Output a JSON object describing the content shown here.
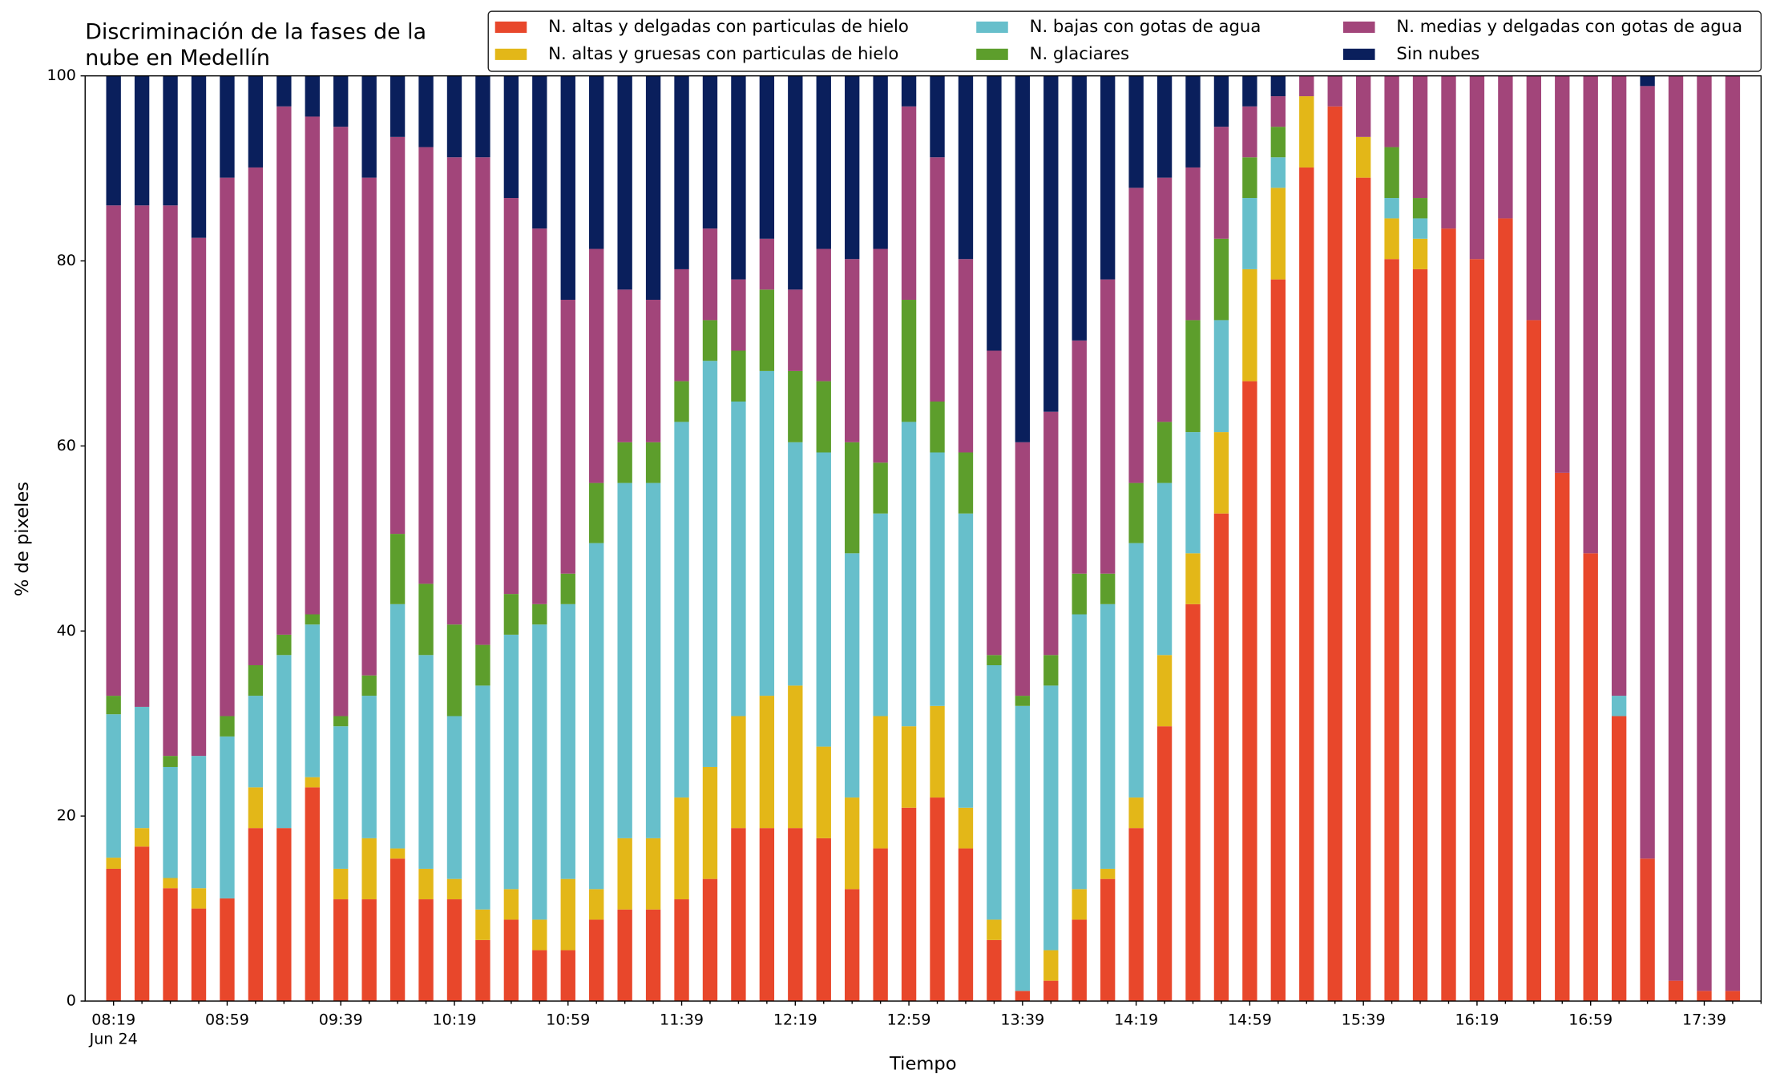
{
  "chart_data": {
    "type": "stacked-bar",
    "title": [
      "Discriminación de la fases de la",
      "nube en Medellín"
    ],
    "x_label": "Tiempo",
    "y_label": "% de pixeles",
    "categories": [
      "08:19",
      null,
      null,
      null,
      "08:59",
      null,
      null,
      null,
      "09:39",
      null,
      null,
      null,
      "10:19",
      null,
      null,
      null,
      "10:59",
      null,
      null,
      null,
      "11:39",
      null,
      null,
      null,
      "12:19",
      null,
      null,
      null,
      "12:59",
      null,
      null,
      null,
      "13:39",
      null,
      null,
      null,
      "14:19",
      null,
      null,
      null,
      "14:59",
      null,
      null,
      null,
      "15:39",
      null,
      null,
      null,
      "16:19",
      null,
      null,
      null,
      "16:59",
      null,
      null,
      null,
      "17:39",
      null
    ],
    "x_sublabel": "Jun 24",
    "ylim": [
      0,
      100
    ],
    "yticks": [
      0,
      20,
      40,
      60,
      80,
      100
    ],
    "grid": false,
    "legend_columns": 3,
    "series": [
      {
        "name": "N. altas y delgadas con particulas de hielo",
        "color": "#e8472b",
        "values": [
          14.3,
          16.7,
          12.2,
          10,
          11.1,
          18.7,
          18.7,
          23.1,
          11,
          11,
          15.4,
          11,
          11,
          6.6,
          8.8,
          5.5,
          5.5,
          8.8,
          9.9,
          9.9,
          11,
          13.2,
          18.7,
          18.7,
          18.7,
          17.6,
          12.1,
          16.5,
          20.9,
          22,
          16.5,
          6.6,
          1.1,
          2.2,
          8.8,
          13.2,
          18.7,
          29.7,
          42.9,
          52.7,
          67,
          78,
          90.1,
          96.7,
          89,
          80.2,
          79.1,
          83.5,
          80.2,
          84.6,
          73.6,
          57.1,
          48.4,
          30.8,
          15.4,
          2.2,
          1.1,
          1.1
        ]
      },
      {
        "name": "N. altas y gruesas con particulas de hielo",
        "color": "#e3b718",
        "values": [
          1.2,
          2,
          1.1,
          2.2,
          0,
          4.4,
          0,
          1.1,
          3.3,
          6.6,
          1.1,
          3.3,
          2.2,
          3.3,
          3.3,
          3.3,
          7.7,
          3.3,
          7.7,
          7.7,
          11,
          12.1,
          12.1,
          14.3,
          15.4,
          9.9,
          9.9,
          14.3,
          8.8,
          9.9,
          4.4,
          2.2,
          0,
          3.3,
          3.3,
          1.1,
          3.3,
          7.7,
          5.5,
          8.8,
          12.1,
          9.9,
          7.7,
          0,
          4.4,
          4.4,
          3.3,
          0,
          0,
          0,
          0,
          0,
          0,
          0,
          0,
          0,
          0,
          0
        ]
      },
      {
        "name": "N. bajas con gotas de agua",
        "color": "#67bfcb",
        "values": [
          15.5,
          13.1,
          12,
          14.3,
          17.5,
          9.9,
          18.7,
          16.5,
          15.4,
          15.4,
          26.4,
          23.1,
          17.6,
          24.2,
          27.5,
          31.9,
          29.7,
          37.4,
          38.4,
          38.4,
          40.6,
          43.9,
          34,
          35.1,
          26.3,
          31.8,
          26.4,
          21.9,
          32.9,
          27.4,
          31.8,
          27.5,
          30.8,
          28.6,
          29.7,
          28.6,
          27.5,
          18.6,
          13.1,
          12.1,
          7.7,
          3.3,
          0,
          0,
          0,
          2.2,
          2.2,
          0,
          0,
          0,
          0,
          0,
          0,
          2.2,
          0,
          0,
          0,
          0
        ]
      },
      {
        "name": "N. glaciares",
        "color": "#5d9e2c",
        "values": [
          2,
          0,
          1.2,
          0,
          2.2,
          3.3,
          2.2,
          1.1,
          1.1,
          2.2,
          7.6,
          7.7,
          9.9,
          4.4,
          4.4,
          2.2,
          3.3,
          6.5,
          4.4,
          4.4,
          4.4,
          4.4,
          5.5,
          8.8,
          7.7,
          7.7,
          12,
          5.5,
          13.2,
          5.5,
          6.6,
          1.1,
          1.1,
          3.3,
          4.4,
          3.3,
          6.5,
          6.6,
          12.1,
          8.8,
          4.4,
          3.3,
          0,
          0,
          0,
          5.5,
          2.2,
          0,
          0,
          0,
          0,
          0,
          0,
          0,
          0,
          0,
          0,
          0
        ]
      },
      {
        "name": "N. medias y delgadas con gotas de agua",
        "color": "#a2457a",
        "values": [
          53,
          54.2,
          59.5,
          56,
          58.2,
          53.8,
          57.1,
          53.8,
          63.7,
          53.8,
          42.9,
          47.2,
          50.5,
          52.7,
          42.8,
          40.6,
          29.6,
          25.3,
          16.5,
          15.4,
          12.1,
          9.9,
          7.7,
          5.5,
          8.8,
          14.3,
          19.8,
          23.1,
          20.9,
          26.4,
          20.9,
          32.9,
          27.4,
          26.3,
          25.2,
          31.8,
          31.9,
          26.4,
          16.5,
          12.1,
          5.5,
          3.3,
          2.2,
          3.3,
          6.6,
          7.7,
          13.2,
          16.5,
          19.8,
          15.4,
          26.4,
          42.9,
          51.6,
          67,
          83.5,
          97.8,
          98.9,
          98.9
        ]
      },
      {
        "name": "Sin nubes",
        "color": "#0a1f5c",
        "values": [
          14,
          14,
          14,
          17.5,
          11,
          9.9,
          3.3,
          4.4,
          5.5,
          11,
          6.6,
          7.7,
          8.8,
          8.8,
          13.2,
          16.5,
          24.2,
          18.7,
          23.1,
          24.2,
          20.9,
          16.5,
          22,
          17.6,
          23.1,
          18.7,
          19.8,
          18.7,
          3.3,
          8.8,
          19.8,
          29.7,
          39.6,
          36.3,
          28.6,
          22,
          12.1,
          11,
          9.9,
          5.5,
          3.3,
          2.2,
          0,
          0,
          0,
          0,
          0,
          0,
          0,
          0,
          0,
          0,
          0,
          0,
          1.1,
          0,
          0,
          0
        ]
      }
    ]
  }
}
